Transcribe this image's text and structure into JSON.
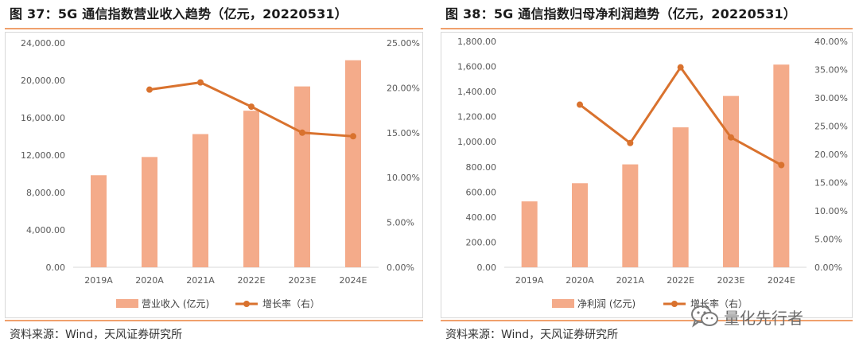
{
  "left": {
    "title": "图 37：5G 通信指数营业收入趋势（亿元，20220531）",
    "source": "资料来源：Wind，天风证券研究所"
  },
  "right": {
    "title": "图 38：5G 通信指数归母净利润趋势（亿元，20220531）",
    "source": "资料来源：Wind，天风证券研究所"
  },
  "watermark": {
    "text": "量化先行者",
    "icon": "wechat-icon"
  },
  "colors": {
    "bar": "#f4ab8a",
    "line": "#d9722e",
    "rule": "#f0a06c"
  },
  "chart_data": [
    {
      "type": "bar",
      "categories": [
        "2019A",
        "2020A",
        "2021A",
        "2022E",
        "2023E",
        "2024E"
      ],
      "series": [
        {
          "name": "营业收入 (亿元)",
          "type": "bar",
          "axis": "left",
          "values": [
            9850,
            11800,
            14250,
            16750,
            19350,
            22150
          ]
        },
        {
          "name": "增长率（右）",
          "type": "line",
          "axis": "right",
          "values": [
            null,
            19.8,
            20.6,
            17.9,
            15.0,
            14.6
          ]
        }
      ],
      "ylim": [
        0,
        24000
      ],
      "yticks": [
        "0.00",
        "4,000.00",
        "8,000.00",
        "12,000.00",
        "16,000.00",
        "20,000.00",
        "24,000.00"
      ],
      "y2lim": [
        0,
        25
      ],
      "y2ticks": [
        "0.00%",
        "5.00%",
        "10.00%",
        "15.00%",
        "20.00%",
        "25.00%"
      ],
      "legend_position": "bottom",
      "grid": false
    },
    {
      "type": "bar",
      "categories": [
        "2019A",
        "2020A",
        "2021A",
        "2022E",
        "2023E",
        "2024E"
      ],
      "series": [
        {
          "name": "净利润 (亿元)",
          "type": "bar",
          "axis": "left",
          "values": [
            525,
            670,
            820,
            1115,
            1365,
            1615
          ]
        },
        {
          "name": "增长率（右）",
          "type": "line",
          "axis": "right",
          "values": [
            null,
            28.8,
            22.0,
            35.4,
            23.0,
            18.1
          ]
        }
      ],
      "ylim": [
        0,
        1800
      ],
      "yticks": [
        "0.00",
        "200.00",
        "400.00",
        "600.00",
        "800.00",
        "1,000.00",
        "1,200.00",
        "1,400.00",
        "1,600.00",
        "1,800.00"
      ],
      "y2lim": [
        0,
        40
      ],
      "y2ticks": [
        "0.00%",
        "5.00%",
        "10.00%",
        "15.00%",
        "20.00%",
        "25.00%",
        "30.00%",
        "35.00%",
        "40.00%"
      ],
      "legend_position": "bottom",
      "grid": false
    }
  ]
}
